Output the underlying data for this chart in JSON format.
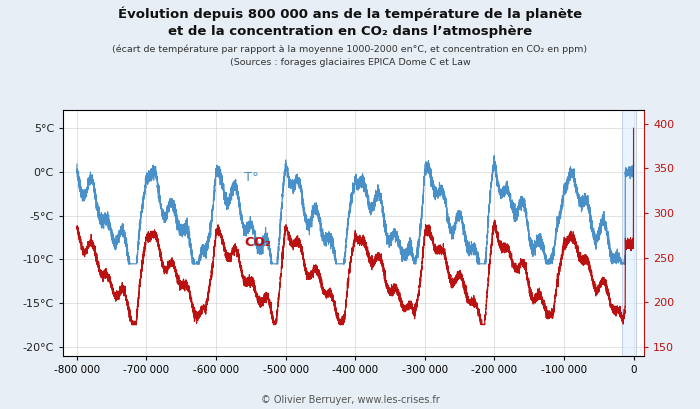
{
  "title_line1": "Évolution depuis 800 000 ans de la température de la planète",
  "title_line2": "et de la concentration en CO₂ dans l’atmosphère",
  "subtitle1": "(écart de température par rapport à la moyenne 1000-2000 en°C, et concentration en CO₂ en ppm)",
  "subtitle2": "(Sources : forages glaciaires EPICA Dome C et Law",
  "copyright": "© Olivier Berruyer, www.les-crises.fr",
  "temp_color": "#4a90c8",
  "co2_color": "#bb1111",
  "highlight_color": "#ddeeff",
  "highlight_edge": "#aabbdd",
  "background_color": "#e8eef5",
  "plot_bg": "#ffffff",
  "temp_label": "T°",
  "co2_label": "CO₂",
  "left_yticks": [
    5,
    0,
    -5,
    -10,
    -15,
    -20
  ],
  "right_yticks": [
    400,
    350,
    300,
    250,
    200,
    150
  ],
  "left_ylim": [
    -21,
    7
  ],
  "right_ylim": [
    140,
    415
  ],
  "xlim": [
    -820000,
    15000
  ],
  "xticks": [
    -800000,
    -700000,
    -600000,
    -500000,
    -400000,
    -300000,
    -200000,
    -100000,
    0
  ]
}
